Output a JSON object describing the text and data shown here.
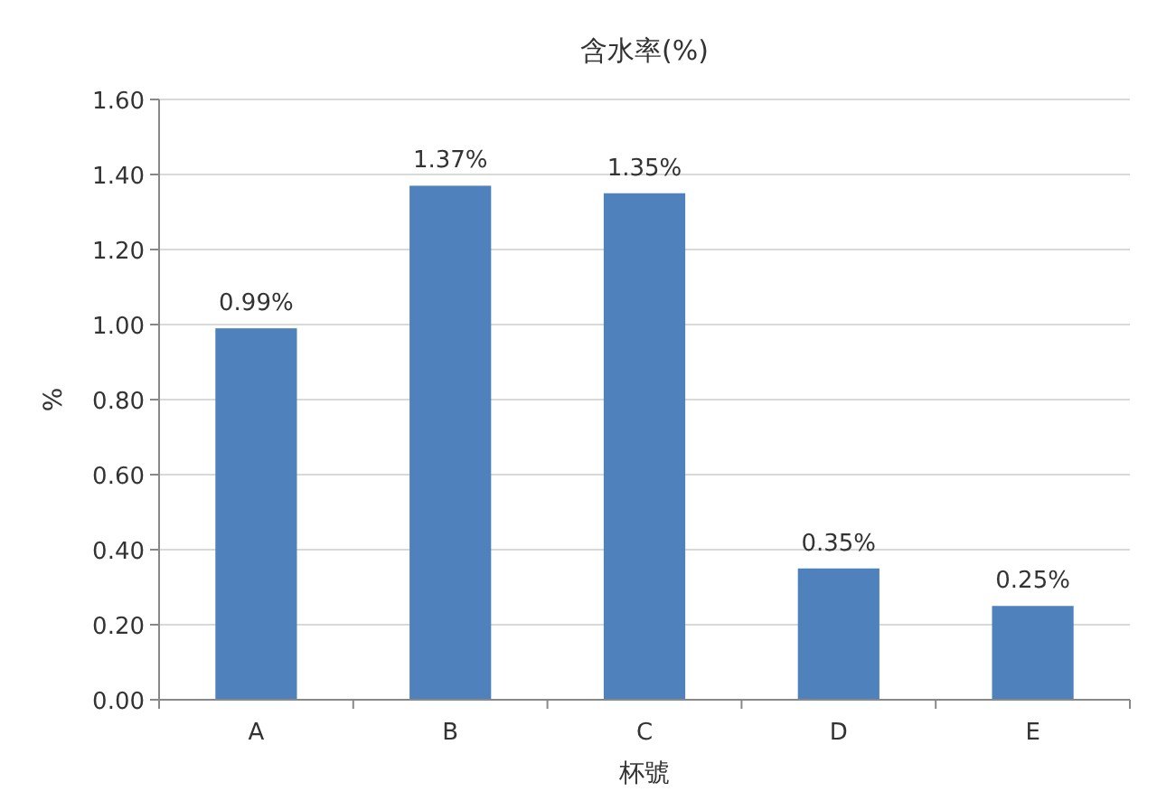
{
  "chart_data": {
    "type": "bar",
    "title": "含水率(%)",
    "xlabel": "杯號",
    "ylabel": "%",
    "categories": [
      "A",
      "B",
      "C",
      "D",
      "E"
    ],
    "values": [
      0.99,
      1.37,
      1.35,
      0.35,
      0.25
    ],
    "value_labels": [
      "0.99%",
      "1.37%",
      "1.35%",
      "0.35%",
      "0.25%"
    ],
    "color": "#4f81bd",
    "ylim": [
      0,
      1.6
    ],
    "yticks": [
      {
        "value": 0,
        "label": "0.00"
      },
      {
        "value": 0.2,
        "label": "0.20"
      },
      {
        "value": 0.4,
        "label": "0.40"
      },
      {
        "value": 0.6,
        "label": "0.60"
      },
      {
        "value": 0.8,
        "label": "0.80"
      },
      {
        "value": 1.0,
        "label": "1.00"
      },
      {
        "value": 1.2,
        "label": "1.20"
      },
      {
        "value": 1.4,
        "label": "1.40"
      },
      {
        "value": 1.6,
        "label": "1.60"
      }
    ],
    "grid": true
  }
}
